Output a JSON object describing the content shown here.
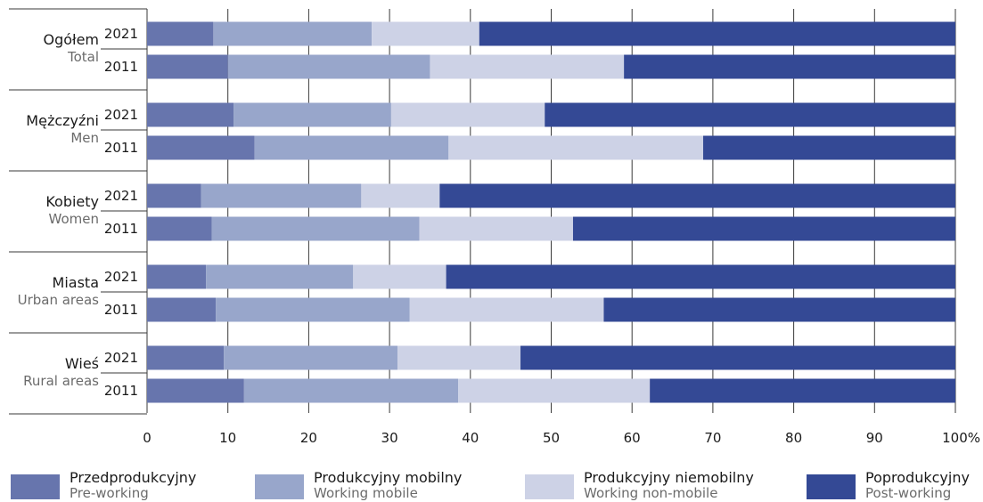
{
  "chart_data": {
    "type": "bar",
    "orientation": "horizontal",
    "stacked": true,
    "x_tick_labels": [
      "0",
      "10",
      "20",
      "30",
      "40",
      "50",
      "60",
      "70",
      "80",
      "90",
      "100%"
    ],
    "xlim": [
      0,
      100
    ],
    "grid": true,
    "legend_position": "bottom",
    "groups": [
      {
        "label": "Ogółem",
        "label_en": "Total",
        "years": [
          "2021",
          "2011"
        ]
      },
      {
        "label": "Mężczyźni",
        "label_en": "Men",
        "years": [
          "2021",
          "2011"
        ]
      },
      {
        "label": "Kobiety",
        "label_en": "Women",
        "years": [
          "2021",
          "2011"
        ]
      },
      {
        "label": "Miasta",
        "label_en": "Urban areas",
        "years": [
          "2021",
          "2011"
        ]
      },
      {
        "label": "Wieś",
        "label_en": "Rural areas",
        "years": [
          "2021",
          "2011"
        ]
      }
    ],
    "series": [
      {
        "name": "Przedprodukcyjny",
        "name_en": "Pre-working",
        "color": "#6775ad",
        "values": [
          8.2,
          10.0,
          10.7,
          13.3,
          6.7,
          8.0,
          7.3,
          8.5,
          9.5,
          12.0
        ]
      },
      {
        "name": "Produkcyjny mobilny",
        "name_en": "Working mobile",
        "color": "#98a6cb",
        "values": [
          19.6,
          25.0,
          19.5,
          24.0,
          19.8,
          25.7,
          18.2,
          24.0,
          21.5,
          26.5
        ]
      },
      {
        "name": "Produkcyjny niemobilny",
        "name_en": "Working non-mobile",
        "color": "#cdd2e6",
        "values": [
          13.3,
          24.0,
          19.0,
          31.5,
          9.7,
          19.0,
          11.5,
          24.0,
          15.2,
          23.7
        ]
      },
      {
        "name": "Poprodukcyjny",
        "name_en": "Post-working",
        "color": "#344995",
        "values": [
          58.9,
          41.0,
          50.8,
          31.2,
          63.8,
          47.3,
          63.0,
          43.5,
          53.8,
          37.8
        ]
      }
    ]
  }
}
